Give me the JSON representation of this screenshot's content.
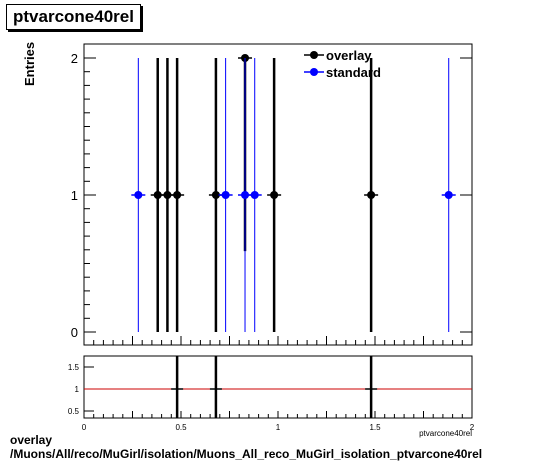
{
  "title": "ptvarcone40rel",
  "ylabel": "Entries",
  "xtitle": "ptvarcone40rel",
  "footer": {
    "line1": "overlay",
    "line2": "/Muons/All/reco/MuGirl/isolation/Muons_All_reco_MuGirl_isolation_ptvarcone40rel"
  },
  "colors": {
    "overlay": "#000000",
    "standard": "#0000ff",
    "ratio_line": "#cc0000"
  },
  "chart_data": [
    {
      "type": "scatter",
      "title": "ptvarcone40rel",
      "ylabel": "Entries",
      "xlim": [
        0,
        2
      ],
      "ylim": [
        0,
        2
      ],
      "yticks": [
        "0",
        "1",
        "2"
      ],
      "legend_position": "top-right",
      "series": [
        {
          "name": "overlay",
          "x": [
            0.38,
            0.43,
            0.48,
            0.68,
            0.83,
            0.98,
            1.48
          ],
          "y": [
            1,
            1,
            1,
            1,
            2,
            1,
            1
          ],
          "yerr": [
            1,
            1,
            1,
            1,
            1.41,
            1,
            1
          ]
        },
        {
          "name": "standard",
          "x": [
            0.28,
            0.73,
            0.83,
            0.88,
            1.88
          ],
          "y": [
            1,
            1,
            1,
            1,
            1
          ],
          "yerr": [
            1,
            1,
            1,
            1,
            1
          ]
        }
      ]
    },
    {
      "type": "scatter",
      "xlim": [
        0,
        2
      ],
      "ylim": [
        0.3,
        1.75
      ],
      "xticks": [
        "0",
        "0.5",
        "1",
        "1.5",
        "2"
      ],
      "yticks": [
        "0.5",
        "1",
        "1.5"
      ],
      "reference_line": 1,
      "points": {
        "x": [
          0.48,
          0.68,
          1.48
        ],
        "y": [
          1,
          1,
          1
        ]
      }
    }
  ]
}
